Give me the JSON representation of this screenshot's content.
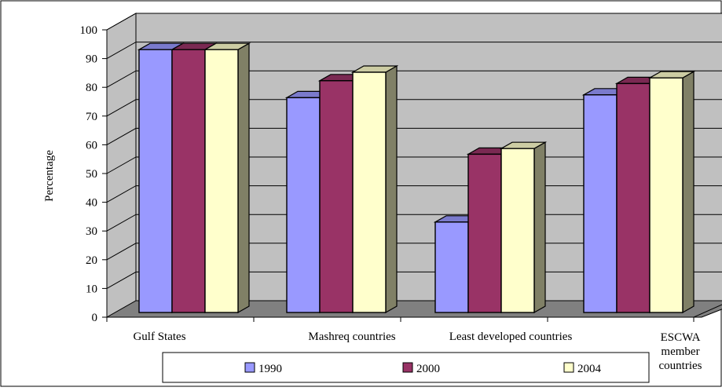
{
  "chart_data": {
    "type": "bar",
    "title": "",
    "xlabel": "",
    "ylabel": "Percentage",
    "ylim": [
      0,
      100
    ],
    "yticks": [
      0,
      10,
      20,
      30,
      40,
      50,
      60,
      70,
      80,
      90,
      100
    ],
    "categories": [
      "Gulf States",
      "Mashreq countries",
      "Least developed countries",
      "ESCWA member countries"
    ],
    "series": [
      {
        "name": "1990",
        "values": [
          93,
          76,
          32,
          77
        ],
        "color": "#9999ff"
      },
      {
        "name": "2000",
        "values": [
          93,
          82,
          56,
          81
        ],
        "color": "#993366"
      },
      {
        "name": "2004",
        "values": [
          93,
          85,
          58,
          83
        ],
        "color": "#ffffcc"
      }
    ],
    "legend": "bottom",
    "grid": true,
    "style": "3d-column",
    "colors": {
      "wall": "#c0c0c0",
      "floor": "#808080",
      "side_shade": "#808066"
    }
  }
}
